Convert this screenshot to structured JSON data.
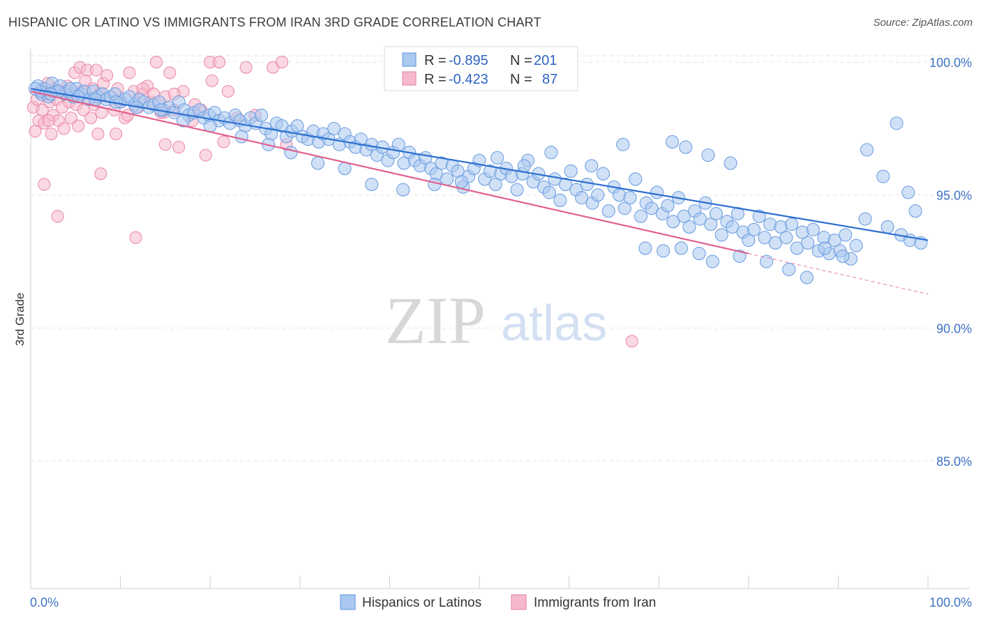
{
  "header": {
    "title": "HISPANIC OR LATINO VS IMMIGRANTS FROM IRAN 3RD GRADE CORRELATION CHART",
    "source": "Source: ZipAtlas.com"
  },
  "watermark": {
    "zip": "ZIP",
    "atlas": "atlas"
  },
  "colors": {
    "blue_fill": "#aac8f0",
    "blue_stroke": "#6f9fe0",
    "blue_line": "#2b6fd0",
    "pink_fill": "#f6b9cc",
    "pink_stroke": "#ea8cab",
    "pink_line": "#e0608e",
    "tick_text": "#3f73c5",
    "grid": "#e2e2e2"
  },
  "legend": {
    "rows": [
      {
        "r_label": "R =",
        "r_value": "-0.895",
        "n_label": "N =",
        "n_value": "201",
        "swatch": "blue"
      },
      {
        "r_label": "R =",
        "r_value": "-0.423",
        "n_label": "N =",
        "n_value": "87",
        "swatch": "pink"
      }
    ]
  },
  "bottom_legend": [
    {
      "label": "Hispanics or Latinos",
      "swatch": "blue"
    },
    {
      "label": "Immigrants from Iran",
      "swatch": "pink"
    }
  ],
  "chart_data": {
    "type": "scatter",
    "title": "HISPANIC OR LATINO VS IMMIGRANTS FROM IRAN 3RD GRADE CORRELATION CHART",
    "ylabel": "3rd Grade",
    "xlabel": "",
    "x_tick_labels": [
      "0.0%",
      "100.0%"
    ],
    "y_tick_labels": [
      "100.0%",
      "95.0%",
      "90.0%",
      "85.0%"
    ],
    "y_ticks": [
      100,
      95,
      90,
      85
    ],
    "xlim": [
      0,
      100
    ],
    "ylim": [
      80.2,
      100.5
    ],
    "grid": true,
    "legend_placement": "top-center",
    "series": [
      {
        "name": "Hispanics or Latinos",
        "color": "#aac8f0",
        "trend": {
          "x": [
            0,
            100
          ],
          "y": [
            99.0,
            93.3
          ]
        },
        "points": [
          [
            0.8,
            99.1
          ],
          [
            1.2,
            98.8
          ],
          [
            1.5,
            99.0
          ],
          [
            2.0,
            98.7
          ],
          [
            2.4,
            99.2
          ],
          [
            2.8,
            98.9
          ],
          [
            3.3,
            99.1
          ],
          [
            3.8,
            98.8
          ],
          [
            4.2,
            98.9
          ],
          [
            4.7,
            98.7
          ],
          [
            5.1,
            99.0
          ],
          [
            5.6,
            98.8
          ],
          [
            6.0,
            98.9
          ],
          [
            6.5,
            98.6
          ],
          [
            7.0,
            98.9
          ],
          [
            7.5,
            98.7
          ],
          [
            8.0,
            98.8
          ],
          [
            8.4,
            98.6
          ],
          [
            8.9,
            98.7
          ],
          [
            9.4,
            98.8
          ],
          [
            10.0,
            98.5
          ],
          [
            10.5,
            98.6
          ],
          [
            11.0,
            98.7
          ],
          [
            11.6,
            98.4
          ],
          [
            12.1,
            98.6
          ],
          [
            12.6,
            98.5
          ],
          [
            13.2,
            98.3
          ],
          [
            13.7,
            98.4
          ],
          [
            14.3,
            98.5
          ],
          [
            14.8,
            98.2
          ],
          [
            15.4,
            98.3
          ],
          [
            16.0,
            98.1
          ],
          [
            16.5,
            98.5
          ],
          [
            17.1,
            98.2
          ],
          [
            17.6,
            98.0
          ],
          [
            18.2,
            98.1
          ],
          [
            18.8,
            98.2
          ],
          [
            19.3,
            97.9
          ],
          [
            19.9,
            98.0
          ],
          [
            20.5,
            98.1
          ],
          [
            21.0,
            97.8
          ],
          [
            21.6,
            97.9
          ],
          [
            22.2,
            97.7
          ],
          [
            22.8,
            98.0
          ],
          [
            23.3,
            97.8
          ],
          [
            23.9,
            97.6
          ],
          [
            24.5,
            97.9
          ],
          [
            25.1,
            97.7
          ],
          [
            25.7,
            98.0
          ],
          [
            26.2,
            97.5
          ],
          [
            26.8,
            97.3
          ],
          [
            27.4,
            97.7
          ],
          [
            28.0,
            97.6
          ],
          [
            28.5,
            97.2
          ],
          [
            29.1,
            97.4
          ],
          [
            29.7,
            97.6
          ],
          [
            30.3,
            97.2
          ],
          [
            30.9,
            97.1
          ],
          [
            31.5,
            97.4
          ],
          [
            32.1,
            97.0
          ],
          [
            32.6,
            97.3
          ],
          [
            33.2,
            97.1
          ],
          [
            33.8,
            97.5
          ],
          [
            34.4,
            96.9
          ],
          [
            35.0,
            97.3
          ],
          [
            35.6,
            97.0
          ],
          [
            36.2,
            96.8
          ],
          [
            36.8,
            97.1
          ],
          [
            37.4,
            96.7
          ],
          [
            38.0,
            96.9
          ],
          [
            38.6,
            96.5
          ],
          [
            39.2,
            96.8
          ],
          [
            39.8,
            96.3
          ],
          [
            40.4,
            96.6
          ],
          [
            41.0,
            96.9
          ],
          [
            41.6,
            96.2
          ],
          [
            42.2,
            96.6
          ],
          [
            42.8,
            96.3
          ],
          [
            43.4,
            96.1
          ],
          [
            44.0,
            96.4
          ],
          [
            44.6,
            96.0
          ],
          [
            45.2,
            95.8
          ],
          [
            45.8,
            96.2
          ],
          [
            46.4,
            95.6
          ],
          [
            47.0,
            96.1
          ],
          [
            47.6,
            95.9
          ],
          [
            48.2,
            95.3
          ],
          [
            48.8,
            95.7
          ],
          [
            49.4,
            96.0
          ],
          [
            50.0,
            96.3
          ],
          [
            50.6,
            95.6
          ],
          [
            51.2,
            95.9
          ],
          [
            51.8,
            95.4
          ],
          [
            52.4,
            95.8
          ],
          [
            53.0,
            96.0
          ],
          [
            53.6,
            95.7
          ],
          [
            54.2,
            95.2
          ],
          [
            54.8,
            95.8
          ],
          [
            55.4,
            96.3
          ],
          [
            56.0,
            95.5
          ],
          [
            56.6,
            95.8
          ],
          [
            57.2,
            95.3
          ],
          [
            57.8,
            95.1
          ],
          [
            58.4,
            95.6
          ],
          [
            59.0,
            94.8
          ],
          [
            59.6,
            95.4
          ],
          [
            60.2,
            95.9
          ],
          [
            60.8,
            95.2
          ],
          [
            61.4,
            94.9
          ],
          [
            62.0,
            95.4
          ],
          [
            62.6,
            94.7
          ],
          [
            63.2,
            95.0
          ],
          [
            63.8,
            95.8
          ],
          [
            64.4,
            94.4
          ],
          [
            65.0,
            95.3
          ],
          [
            65.6,
            95.0
          ],
          [
            66.2,
            94.5
          ],
          [
            66.8,
            94.9
          ],
          [
            67.4,
            95.6
          ],
          [
            68.0,
            94.2
          ],
          [
            68.6,
            94.7
          ],
          [
            69.2,
            94.5
          ],
          [
            69.8,
            95.1
          ],
          [
            70.4,
            94.3
          ],
          [
            71.0,
            94.6
          ],
          [
            71.6,
            94.0
          ],
          [
            72.2,
            94.9
          ],
          [
            72.8,
            94.2
          ],
          [
            73.4,
            93.8
          ],
          [
            74.0,
            94.4
          ],
          [
            74.6,
            94.1
          ],
          [
            75.2,
            94.7
          ],
          [
            75.8,
            93.9
          ],
          [
            76.4,
            94.3
          ],
          [
            77.0,
            93.5
          ],
          [
            77.6,
            94.0
          ],
          [
            78.2,
            93.8
          ],
          [
            78.8,
            94.3
          ],
          [
            79.4,
            93.6
          ],
          [
            80.0,
            93.3
          ],
          [
            80.6,
            93.7
          ],
          [
            81.2,
            94.2
          ],
          [
            81.8,
            93.4
          ],
          [
            82.4,
            93.9
          ],
          [
            83.0,
            93.2
          ],
          [
            83.6,
            93.8
          ],
          [
            84.2,
            93.4
          ],
          [
            84.8,
            93.9
          ],
          [
            85.4,
            93.0
          ],
          [
            86.0,
            93.6
          ],
          [
            86.6,
            93.2
          ],
          [
            87.2,
            93.7
          ],
          [
            87.8,
            92.9
          ],
          [
            88.4,
            93.4
          ],
          [
            89.0,
            92.8
          ],
          [
            89.6,
            93.3
          ],
          [
            90.2,
            92.9
          ],
          [
            90.8,
            93.5
          ],
          [
            91.4,
            92.6
          ],
          [
            92.0,
            93.1
          ],
          [
            93.2,
            96.7
          ],
          [
            95.0,
            95.7
          ],
          [
            96.5,
            97.7
          ],
          [
            97.8,
            95.1
          ],
          [
            98.6,
            94.4
          ],
          [
            93.0,
            94.1
          ],
          [
            95.5,
            93.8
          ],
          [
            97.0,
            93.5
          ],
          [
            98.0,
            93.3
          ],
          [
            99.2,
            93.2
          ],
          [
            71.5,
            97.0
          ],
          [
            75.5,
            96.5
          ],
          [
            73.0,
            96.8
          ],
          [
            78.0,
            96.2
          ],
          [
            66.0,
            96.9
          ],
          [
            62.5,
            96.1
          ],
          [
            58.0,
            96.6
          ],
          [
            55.0,
            96.1
          ],
          [
            52.0,
            96.4
          ],
          [
            48.0,
            95.5
          ],
          [
            45.0,
            95.4
          ],
          [
            41.5,
            95.2
          ],
          [
            38.0,
            95.4
          ],
          [
            35.0,
            96.0
          ],
          [
            32.0,
            96.2
          ],
          [
            29.0,
            96.6
          ],
          [
            26.5,
            96.9
          ],
          [
            23.5,
            97.2
          ],
          [
            20.0,
            97.6
          ],
          [
            17.0,
            97.8
          ],
          [
            14.5,
            98.2
          ],
          [
            11.8,
            98.3
          ],
          [
            9.5,
            98.5
          ],
          [
            7.2,
            98.6
          ],
          [
            5.3,
            98.7
          ],
          [
            3.1,
            98.9
          ],
          [
            1.1,
            98.9
          ],
          [
            0.5,
            99.0
          ],
          [
            2.2,
            98.8
          ],
          [
            4.4,
            99.0
          ],
          [
            84.5,
            92.2
          ],
          [
            86.5,
            91.9
          ],
          [
            82.0,
            92.5
          ],
          [
            88.5,
            93.0
          ],
          [
            90.5,
            92.7
          ],
          [
            79.0,
            92.7
          ],
          [
            76.0,
            92.5
          ],
          [
            74.5,
            92.8
          ],
          [
            72.5,
            93.0
          ],
          [
            70.5,
            92.9
          ],
          [
            68.5,
            93.0
          ]
        ]
      },
      {
        "name": "Immigrants from Iran",
        "color": "#f6b9cc",
        "trend": {
          "x": [
            0,
            80
          ],
          "y": [
            98.9,
            92.8
          ]
        },
        "points": [
          [
            0.3,
            98.3
          ],
          [
            0.5,
            97.4
          ],
          [
            0.7,
            98.6
          ],
          [
            0.9,
            97.8
          ],
          [
            1.1,
            98.9
          ],
          [
            1.3,
            98.2
          ],
          [
            1.5,
            97.7
          ],
          [
            1.7,
            98.8
          ],
          [
            1.9,
            99.2
          ],
          [
            2.1,
            98.5
          ],
          [
            2.3,
            97.3
          ],
          [
            2.5,
            98.0
          ],
          [
            2.7,
            99.0
          ],
          [
            2.9,
            98.6
          ],
          [
            3.1,
            97.8
          ],
          [
            3.3,
            98.9
          ],
          [
            3.5,
            98.3
          ],
          [
            3.7,
            97.5
          ],
          [
            3.9,
            98.8
          ],
          [
            4.1,
            99.1
          ],
          [
            4.3,
            98.5
          ],
          [
            4.5,
            97.9
          ],
          [
            4.7,
            98.7
          ],
          [
            4.9,
            99.6
          ],
          [
            5.1,
            98.4
          ],
          [
            5.3,
            97.6
          ],
          [
            5.5,
            99.8
          ],
          [
            5.7,
            98.9
          ],
          [
            5.9,
            98.2
          ],
          [
            6.1,
            99.3
          ],
          [
            6.3,
            99.7
          ],
          [
            6.5,
            98.6
          ],
          [
            6.7,
            97.9
          ],
          [
            6.9,
            99.0
          ],
          [
            7.1,
            98.4
          ],
          [
            7.3,
            99.7
          ],
          [
            7.5,
            97.3
          ],
          [
            7.7,
            98.8
          ],
          [
            7.9,
            98.1
          ],
          [
            8.1,
            99.2
          ],
          [
            8.5,
            99.5
          ],
          [
            8.9,
            98.7
          ],
          [
            9.3,
            98.2
          ],
          [
            9.7,
            99.0
          ],
          [
            10.1,
            98.5
          ],
          [
            10.5,
            97.9
          ],
          [
            11.0,
            99.6
          ],
          [
            11.5,
            98.9
          ],
          [
            12.0,
            98.3
          ],
          [
            12.5,
            98.8
          ],
          [
            13.0,
            99.1
          ],
          [
            13.5,
            98.5
          ],
          [
            14.0,
            100.0
          ],
          [
            14.5,
            98.1
          ],
          [
            15.0,
            98.7
          ],
          [
            15.5,
            99.6
          ],
          [
            16.0,
            98.2
          ],
          [
            17.0,
            98.9
          ],
          [
            18.0,
            97.8
          ],
          [
            19.0,
            98.2
          ],
          [
            20.0,
            100.0
          ],
          [
            21.0,
            100.0
          ],
          [
            22.0,
            98.9
          ],
          [
            23.0,
            97.9
          ],
          [
            24.0,
            99.8
          ],
          [
            25.0,
            98.0
          ],
          [
            27.0,
            99.8
          ],
          [
            28.0,
            100.0
          ],
          [
            15.0,
            96.9
          ],
          [
            19.5,
            96.5
          ],
          [
            16.5,
            96.8
          ],
          [
            9.5,
            97.3
          ],
          [
            7.8,
            95.8
          ],
          [
            1.5,
            95.4
          ],
          [
            3.0,
            94.2
          ],
          [
            10.8,
            98.0
          ],
          [
            11.7,
            93.4
          ],
          [
            20.2,
            99.3
          ],
          [
            18.3,
            98.4
          ],
          [
            16.0,
            98.8
          ],
          [
            12.5,
            99.0
          ],
          [
            13.7,
            98.8
          ],
          [
            14.8,
            98.1
          ],
          [
            21.5,
            97.0
          ],
          [
            28.5,
            96.9
          ],
          [
            2.0,
            97.8
          ],
          [
            67.0,
            89.5
          ]
        ]
      }
    ]
  }
}
